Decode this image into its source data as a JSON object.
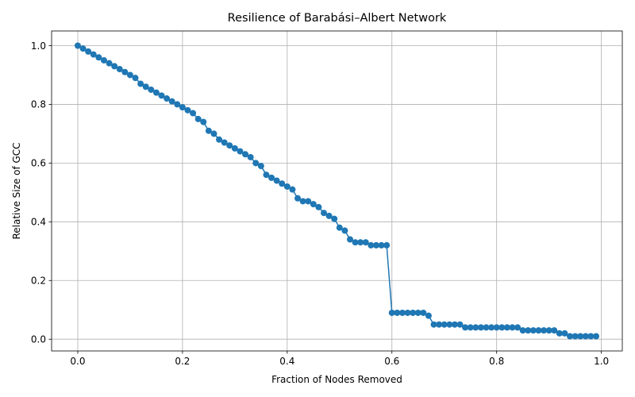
{
  "chart_data": {
    "type": "line",
    "title": "Resilience of Barabási–Albert Network",
    "xlabel": "Fraction of Nodes Removed",
    "ylabel": "Relative Size of GCC",
    "xlim": [
      -0.05,
      1.04
    ],
    "ylim": [
      -0.04,
      1.05
    ],
    "xticks": [
      0.0,
      0.2,
      0.4,
      0.6,
      0.8,
      1.0
    ],
    "xtick_labels": [
      "0.0",
      "0.2",
      "0.4",
      "0.6",
      "0.8",
      "1.0"
    ],
    "yticks": [
      0.0,
      0.2,
      0.4,
      0.6,
      0.8,
      1.0
    ],
    "ytick_labels": [
      "0.0",
      "0.2",
      "0.4",
      "0.6",
      "0.8",
      "1.0"
    ],
    "grid": true,
    "marker": "circle",
    "series": [
      {
        "color": "#1f77b4",
        "x": [
          0.0,
          0.01,
          0.02,
          0.03,
          0.04,
          0.05,
          0.06,
          0.07,
          0.08,
          0.09,
          0.1,
          0.11,
          0.12,
          0.13,
          0.14,
          0.15,
          0.16,
          0.17,
          0.18,
          0.19,
          0.2,
          0.21,
          0.22,
          0.23,
          0.24,
          0.25,
          0.26,
          0.27,
          0.28,
          0.29,
          0.3,
          0.31,
          0.32,
          0.33,
          0.34,
          0.35,
          0.36,
          0.37,
          0.38,
          0.39,
          0.4,
          0.41,
          0.42,
          0.43,
          0.44,
          0.45,
          0.46,
          0.47,
          0.48,
          0.49,
          0.5,
          0.51,
          0.52,
          0.53,
          0.54,
          0.55,
          0.56,
          0.57,
          0.58,
          0.59,
          0.6,
          0.61,
          0.62,
          0.63,
          0.64,
          0.65,
          0.66,
          0.67,
          0.68,
          0.69,
          0.7,
          0.71,
          0.72,
          0.73,
          0.74,
          0.75,
          0.76,
          0.77,
          0.78,
          0.79,
          0.8,
          0.81,
          0.82,
          0.83,
          0.84,
          0.85,
          0.86,
          0.87,
          0.88,
          0.89,
          0.9,
          0.91,
          0.92,
          0.93,
          0.94,
          0.95,
          0.96,
          0.97,
          0.98,
          0.99
        ],
        "values": [
          1.0,
          0.99,
          0.98,
          0.97,
          0.96,
          0.95,
          0.94,
          0.93,
          0.92,
          0.91,
          0.9,
          0.89,
          0.87,
          0.86,
          0.85,
          0.84,
          0.83,
          0.82,
          0.81,
          0.8,
          0.79,
          0.78,
          0.77,
          0.75,
          0.74,
          0.71,
          0.7,
          0.68,
          0.67,
          0.66,
          0.65,
          0.64,
          0.63,
          0.62,
          0.6,
          0.59,
          0.56,
          0.55,
          0.54,
          0.53,
          0.52,
          0.51,
          0.48,
          0.47,
          0.47,
          0.46,
          0.45,
          0.43,
          0.42,
          0.41,
          0.38,
          0.37,
          0.34,
          0.33,
          0.33,
          0.33,
          0.32,
          0.32,
          0.32,
          0.32,
          0.09,
          0.09,
          0.09,
          0.09,
          0.09,
          0.09,
          0.09,
          0.08,
          0.05,
          0.05,
          0.05,
          0.05,
          0.05,
          0.05,
          0.04,
          0.04,
          0.04,
          0.04,
          0.04,
          0.04,
          0.04,
          0.04,
          0.04,
          0.04,
          0.04,
          0.03,
          0.03,
          0.03,
          0.03,
          0.03,
          0.03,
          0.03,
          0.02,
          0.02,
          0.01,
          0.01,
          0.01,
          0.01,
          0.01,
          0.01
        ]
      }
    ]
  }
}
